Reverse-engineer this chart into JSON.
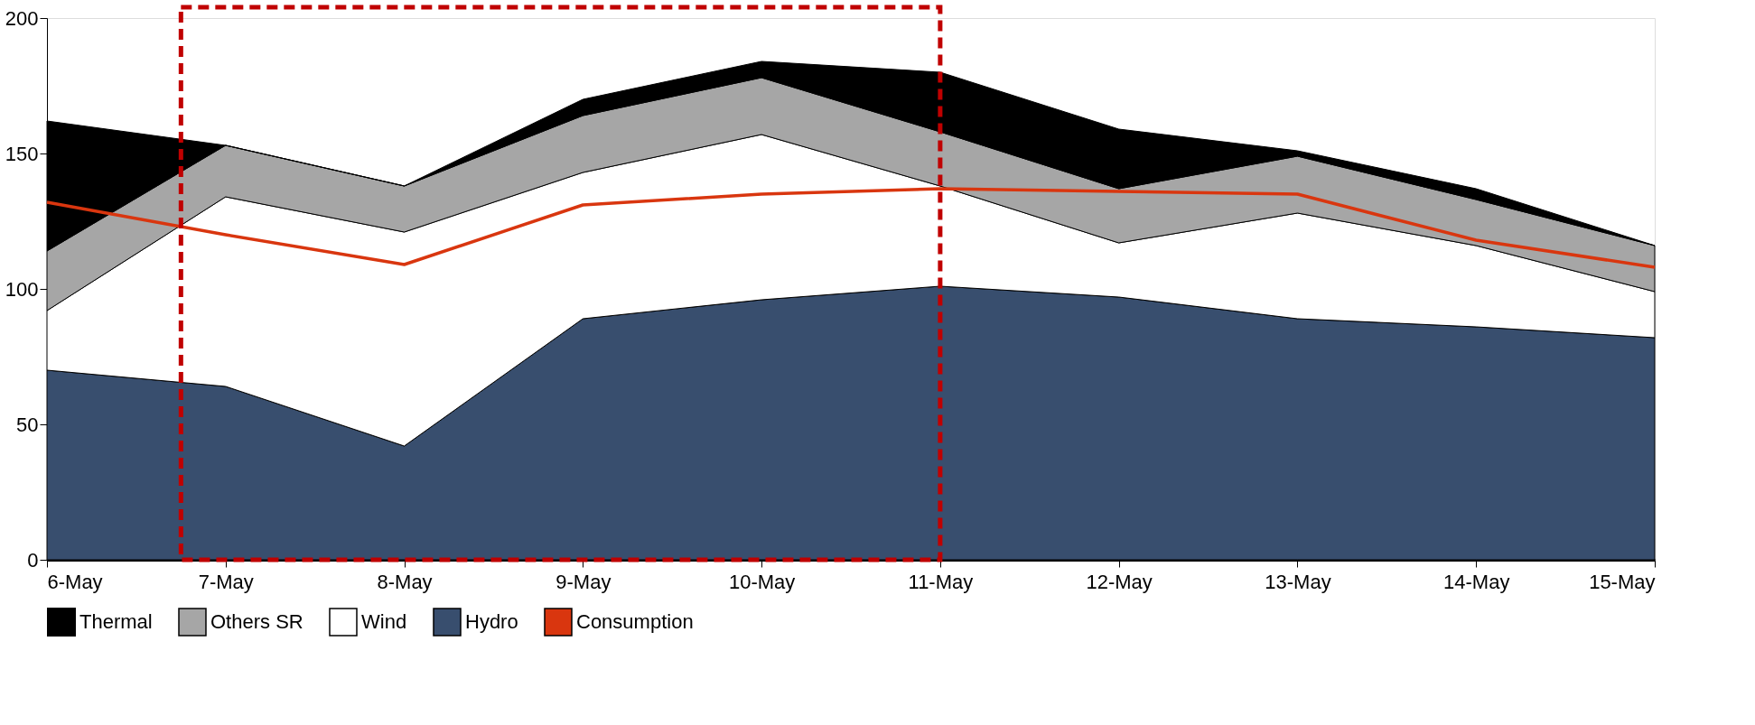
{
  "chart_data": {
    "type": "area",
    "stacked": true,
    "categories": [
      "6-May",
      "7-May",
      "8-May",
      "9-May",
      "10-May",
      "11-May",
      "12-May",
      "13-May",
      "14-May",
      "15-May"
    ],
    "series": [
      {
        "name": "Hydro",
        "color": "#384e6e",
        "values": [
          70,
          64,
          42,
          89,
          96,
          101,
          97,
          89,
          86,
          82
        ]
      },
      {
        "name": "Wind",
        "color": "#ffffff",
        "values": [
          22,
          70,
          79,
          54,
          61,
          37,
          20,
          39,
          30,
          17
        ]
      },
      {
        "name": "Others SR",
        "color": "#a6a6a6",
        "values": [
          22,
          19,
          17,
          21,
          21,
          20,
          20,
          21,
          17,
          17
        ]
      },
      {
        "name": "Thermal",
        "color": "#000000",
        "values": [
          48,
          0,
          0,
          6,
          6,
          22,
          22,
          2,
          4,
          0
        ]
      },
      {
        "name": "Consumption",
        "type": "line",
        "color": "#d9360f",
        "values": [
          132,
          120,
          109,
          131,
          135,
          137,
          136,
          135,
          118,
          108
        ]
      }
    ],
    "ylim": [
      0,
      200
    ],
    "yticks": [
      0,
      50,
      100,
      150,
      200
    ],
    "grid": false,
    "legend": "bottom"
  }
}
